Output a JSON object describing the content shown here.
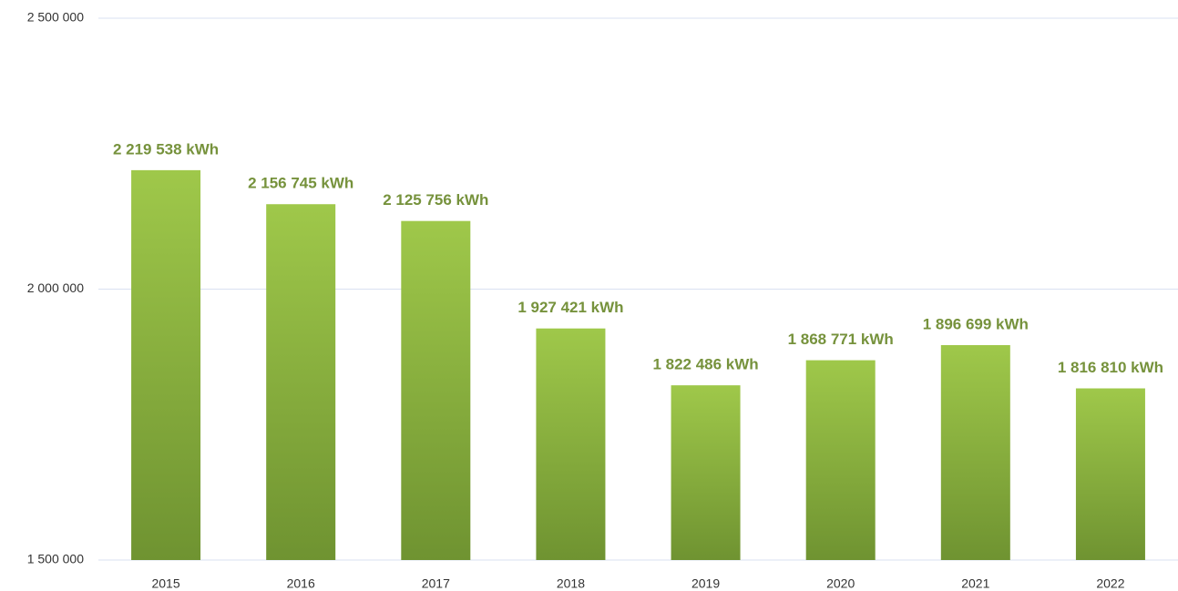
{
  "chart_data": {
    "type": "bar",
    "categories": [
      "2015",
      "2016",
      "2017",
      "2018",
      "2019",
      "2020",
      "2021",
      "2022"
    ],
    "values": [
      2219538,
      2156745,
      2125756,
      1927421,
      1822486,
      1868771,
      1896699,
      1816810
    ],
    "value_labels": [
      "2 219 538 kWh",
      "2 156 745 kWh",
      "2 125 756 kWh",
      "1 927 421 kWh",
      "1 822 486 kWh",
      "1 868 771 kWh",
      "1 896 699 kWh",
      "1 816 810 kWh"
    ],
    "color": "#8db543",
    "ylim": [
      1500000,
      2500000
    ],
    "yticks": [
      {
        "value": 1500000,
        "label": "1 500 000"
      },
      {
        "value": 2000000,
        "label": "2 000 000"
      },
      {
        "value": 2500000,
        "label": "2 500 000"
      }
    ],
    "grid": true
  }
}
